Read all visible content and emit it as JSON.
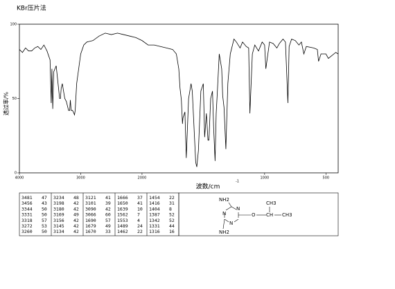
{
  "chart_data": {
    "type": "line",
    "title": "KBr压片法",
    "x_label": "波数/cm",
    "x_label_exponent": "-1",
    "y_label": "透过率/%",
    "xlim": [
      4000,
      400
    ],
    "x_scale_break": 2000,
    "x_scale_ratio": 2,
    "ylim": [
      0,
      100
    ],
    "xticks": [
      4000,
      3000,
      2000,
      1000,
      500
    ],
    "yticks": [
      0,
      50,
      100
    ],
    "grid": false,
    "color": "#000000",
    "x": [
      4000,
      3950,
      3900,
      3850,
      3800,
      3750,
      3700,
      3650,
      3600,
      3550,
      3500,
      3481,
      3470,
      3456,
      3440,
      3400,
      3344,
      3331,
      3318,
      3300,
      3272,
      3260,
      3234,
      3198,
      3180,
      3169,
      3156,
      3145,
      3134,
      3121,
      3101,
      3090,
      3066,
      3000,
      2950,
      2900,
      2800,
      2700,
      2600,
      2500,
      2400,
      2300,
      2200,
      2100,
      2000,
      1950,
      1900,
      1850,
      1800,
      1750,
      1720,
      1700,
      1690,
      1679,
      1670,
      1666,
      1650,
      1639,
      1620,
      1600,
      1590,
      1562,
      1553,
      1540,
      1520,
      1500,
      1489,
      1475,
      1462,
      1454,
      1440,
      1425,
      1416,
      1404,
      1395,
      1387,
      1370,
      1350,
      1342,
      1331,
      1316,
      1300,
      1280,
      1250,
      1230,
      1200,
      1180,
      1150,
      1130,
      1120,
      1100,
      1080,
      1050,
      1020,
      1000,
      990,
      960,
      930,
      900,
      880,
      850,
      830,
      810,
      800,
      780,
      750,
      720,
      700,
      680,
      660,
      600,
      570,
      560,
      540,
      500,
      480,
      450,
      420,
      400
    ],
    "values": [
      83,
      81,
      84,
      82,
      82,
      84,
      85,
      83,
      86,
      82,
      76,
      47,
      70,
      43,
      68,
      72,
      50,
      50,
      57,
      60,
      53,
      50,
      48,
      42,
      42,
      49,
      42,
      42,
      42,
      41,
      39,
      42,
      60,
      80,
      86,
      88,
      89,
      92,
      94,
      93,
      94,
      93,
      92,
      91,
      89,
      86,
      86,
      85,
      84,
      83,
      80,
      70,
      57,
      49,
      33,
      37,
      41,
      10,
      50,
      60,
      55,
      7,
      4,
      15,
      55,
      60,
      24,
      40,
      22,
      22,
      50,
      55,
      31,
      8,
      40,
      52,
      80,
      70,
      52,
      44,
      16,
      60,
      80,
      90,
      88,
      84,
      88,
      85,
      84,
      40,
      80,
      86,
      82,
      88,
      86,
      70,
      88,
      87,
      84,
      87,
      90,
      88,
      47,
      85,
      90,
      89,
      86,
      88,
      80,
      85,
      84,
      83,
      75,
      80,
      80,
      77,
      79,
      81,
      80
    ]
  },
  "peak_table": {
    "rows": [
      [
        3481,
        47,
        3234,
        48,
        3121,
        41,
        1666,
        37,
        1454,
        22
      ],
      [
        3456,
        43,
        3198,
        42,
        3101,
        39,
        1650,
        41,
        1416,
        31
      ],
      [
        3344,
        50,
        3180,
        42,
        3090,
        42,
        1639,
        10,
        1404,
        8
      ],
      [
        3331,
        50,
        3169,
        49,
        3066,
        60,
        1562,
        7,
        1387,
        52
      ],
      [
        3318,
        57,
        3156,
        42,
        1690,
        57,
        1553,
        4,
        1342,
        52
      ],
      [
        3272,
        53,
        3145,
        42,
        1679,
        49,
        1489,
        24,
        1331,
        44
      ],
      [
        3260,
        50,
        3134,
        42,
        1670,
        33,
        1462,
        22,
        1316,
        16
      ]
    ]
  },
  "structure": {
    "amine_top": "NH2",
    "amine_bottom": "NH2",
    "ring_n1": "N",
    "ring_n2": "N",
    "ring_n3": "N",
    "oxygen": "O",
    "methine": "CH",
    "methyl_top": "CH3",
    "methyl_right": "CH3"
  }
}
